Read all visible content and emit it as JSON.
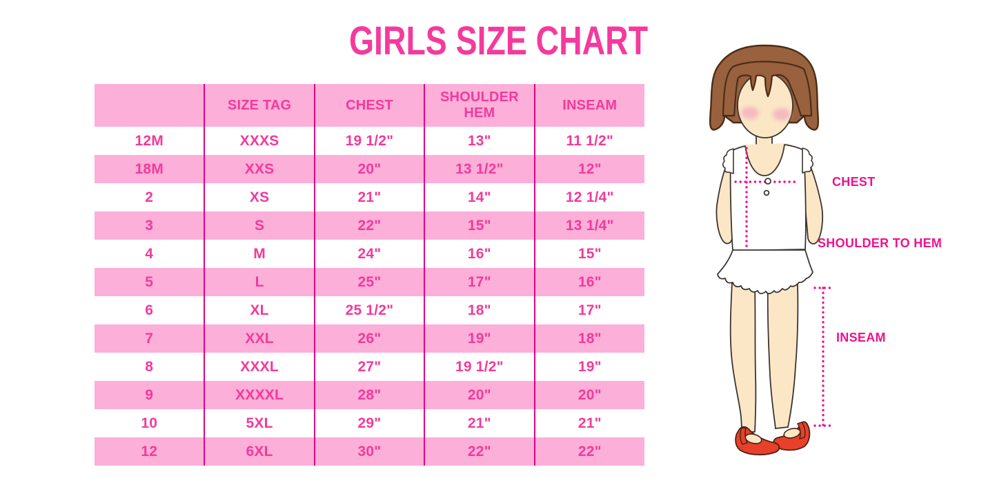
{
  "title": "GIRLS SIZE CHART",
  "colors": {
    "title_pink": "#F43A9D",
    "row_pink": "#FBAFD9",
    "table_text_pink": "#F4399B",
    "divider_pink": "#E30085",
    "label_pink": "#EF128D",
    "dotted_line_pink": "#F0138D",
    "hair_brown": "#99613E",
    "skin": "#FBE7C6",
    "shoe_red": "#E8402B",
    "background": "#FFFFFF"
  },
  "size_table": {
    "headers": [
      "",
      "SIZE TAG",
      "CHEST",
      "SHOULDER HEM",
      "INSEAM"
    ],
    "rows": [
      [
        "12M",
        "XXXS",
        "19 1/2\"",
        "13\"",
        "11 1/2\""
      ],
      [
        "18M",
        "XXS",
        "20\"",
        "13 1/2\"",
        "12\""
      ],
      [
        "2",
        "XS",
        "21\"",
        "14\"",
        "12 1/4\""
      ],
      [
        "3",
        "S",
        "22\"",
        "15\"",
        "13 1/4\""
      ],
      [
        "4",
        "M",
        "24\"",
        "16\"",
        "15\""
      ],
      [
        "5",
        "L",
        "25\"",
        "17\"",
        "16\""
      ],
      [
        "6",
        "XL",
        "25 1/2\"",
        "18\"",
        "17\""
      ],
      [
        "7",
        "XXL",
        "26\"",
        "19\"",
        "18\""
      ],
      [
        "8",
        "XXXL",
        "27\"",
        "19 1/2\"",
        "19\""
      ],
      [
        "9",
        "XXXXL",
        "28\"",
        "20\"",
        "20\""
      ],
      [
        "10",
        "5XL",
        "29\"",
        "21\"",
        "21\""
      ],
      [
        "12",
        "6XL",
        "30\"",
        "22\"",
        "22\""
      ]
    ]
  },
  "diagram": {
    "chest_label": "CHEST",
    "shoulder_to_hem_label": "SHOULDER TO HEM",
    "inseam_label": "INSEAM"
  }
}
